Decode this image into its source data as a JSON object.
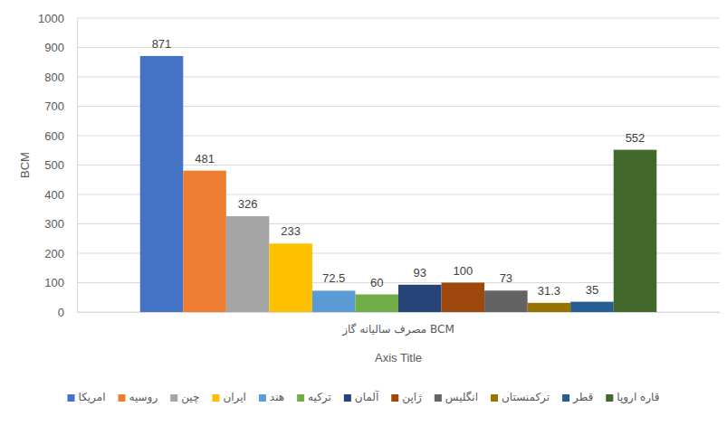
{
  "chart_data": {
    "type": "bar",
    "categories": [
      "مصرف سالیانه گاز BCM"
    ],
    "x_label": "Axis Title",
    "y_label": "BCM",
    "series": [
      {
        "name": "امریکا",
        "color": "#4472c4",
        "values": [
          871
        ]
      },
      {
        "name": "روسیه",
        "color": "#ed7d31",
        "values": [
          481
        ]
      },
      {
        "name": "چین",
        "color": "#a5a5a5",
        "values": [
          326
        ]
      },
      {
        "name": "ایران",
        "color": "#ffc000",
        "values": [
          233
        ]
      },
      {
        "name": "هند",
        "color": "#5b9bd5",
        "values": [
          72.5
        ]
      },
      {
        "name": "ترکیه",
        "color": "#70ad47",
        "values": [
          60
        ]
      },
      {
        "name": "آلمان",
        "color": "#264478",
        "values": [
          93
        ]
      },
      {
        "name": "ژاپن",
        "color": "#9e480e",
        "values": [
          100
        ]
      },
      {
        "name": "انگلیس",
        "color": "#636363",
        "values": [
          73
        ]
      },
      {
        "name": "ترکمنستان",
        "color": "#997300",
        "values": [
          31.3
        ]
      },
      {
        "name": "قطر",
        "color": "#255e91",
        "values": [
          35
        ]
      },
      {
        "name": "قاره اروپا",
        "color": "#43682b",
        "values": [
          552
        ]
      }
    ],
    "ylim": [
      0,
      1000
    ],
    "yticks": [
      0,
      100,
      200,
      300,
      400,
      500,
      600,
      700,
      800,
      900,
      1000
    ],
    "grid": true,
    "data_labels": true,
    "legend": "bottom"
  }
}
